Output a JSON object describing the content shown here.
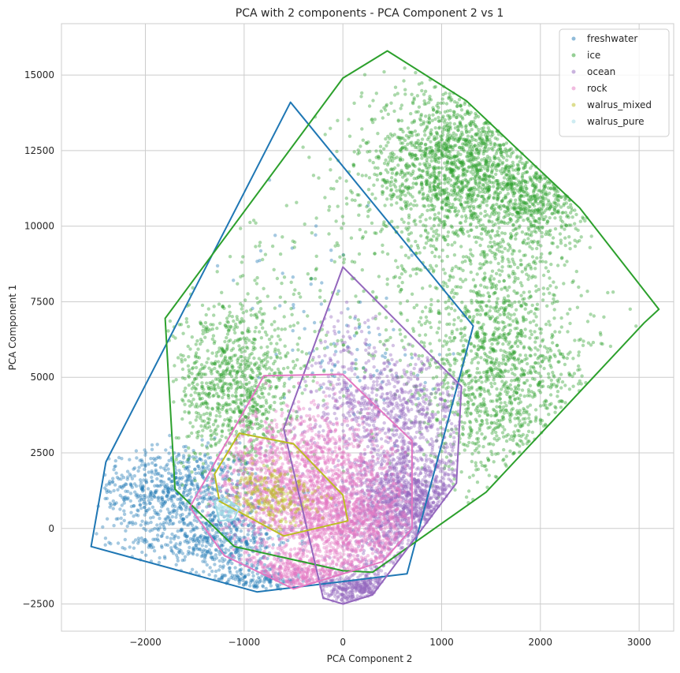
{
  "chart_data": {
    "type": "scatter",
    "title": "PCA with 2 components - PCA Component 2 vs 1",
    "xlabel": "PCA Component 2",
    "ylabel": "PCA Component 1",
    "xlim": [
      -2850,
      3350
    ],
    "ylim": [
      -3400,
      16700
    ],
    "xticks": [
      -2000,
      -1000,
      0,
      1000,
      2000,
      3000
    ],
    "xtick_labels": [
      "−2000",
      "−1000",
      "0",
      "1000",
      "2000",
      "3000"
    ],
    "yticks": [
      -2500,
      0,
      2500,
      5000,
      7500,
      10000,
      12500,
      15000
    ],
    "ytick_labels": [
      "−2500",
      "0",
      "2500",
      "5000",
      "7500",
      "10000",
      "12500",
      "15000"
    ],
    "grid": true,
    "legend_position": "top-right",
    "series": [
      {
        "name": "freshwater",
        "color": "#1f77b4",
        "hull": [
          [
            -2550,
            -600
          ],
          [
            -2400,
            2200
          ],
          [
            -530,
            14100
          ],
          [
            1320,
            6700
          ],
          [
            650,
            -1500
          ],
          [
            -870,
            -2100
          ]
        ],
        "clusters": [
          {
            "center": [
              -1700,
              1300
            ],
            "spread": [
              450,
              700
            ],
            "count": 700
          },
          {
            "center": [
              -1300,
              -400
            ],
            "spread": [
              400,
              500
            ],
            "count": 500
          },
          {
            "center": [
              -900,
              -1700
            ],
            "spread": [
              250,
              250
            ],
            "count": 150
          },
          {
            "center": [
              -300,
              8500
            ],
            "spread": [
              400,
              2000
            ],
            "count": 40
          },
          {
            "center": [
              200,
              5500
            ],
            "spread": [
              400,
              800
            ],
            "count": 60
          }
        ]
      },
      {
        "name": "ice",
        "color": "#2ca02c",
        "hull": [
          [
            -1800,
            6950
          ],
          [
            -1700,
            1300
          ],
          [
            -1100,
            -600
          ],
          [
            0,
            -1400
          ],
          [
            300,
            -1450
          ],
          [
            1450,
            1200
          ],
          [
            3050,
            6800
          ],
          [
            3200,
            7250
          ],
          [
            2400,
            10600
          ],
          [
            1250,
            14150
          ],
          [
            450,
            15800
          ],
          [
            0,
            14900
          ],
          [
            -1800,
            6950
          ]
        ],
        "clusters": [
          {
            "center": [
              1200,
              12000
            ],
            "spread": [
              500,
              1300
            ],
            "count": 1700
          },
          {
            "center": [
              2000,
              10700
            ],
            "spread": [
              300,
              700
            ],
            "count": 400
          },
          {
            "center": [
              -1100,
              4700
            ],
            "spread": [
              300,
              1400
            ],
            "count": 900
          },
          {
            "center": [
              1550,
              6500
            ],
            "spread": [
              400,
              1800
            ],
            "count": 900
          },
          {
            "center": [
              1800,
              3500
            ],
            "spread": [
              500,
              1500
            ],
            "count": 500
          },
          {
            "center": [
              0,
              7000
            ],
            "spread": [
              900,
              2200
            ],
            "count": 300
          }
        ]
      },
      {
        "name": "ocean",
        "color": "#9467bd",
        "hull": [
          [
            -600,
            3300
          ],
          [
            0,
            8650
          ],
          [
            1200,
            4700
          ],
          [
            1150,
            1500
          ],
          [
            300,
            -2200
          ],
          [
            0,
            -2500
          ],
          [
            -200,
            -2300
          ]
        ],
        "clusters": [
          {
            "center": [
              700,
              800
            ],
            "spread": [
              350,
              1000
            ],
            "count": 1400
          },
          {
            "center": [
              500,
              4000
            ],
            "spread": [
              450,
              900
            ],
            "count": 700
          },
          {
            "center": [
              200,
              -2000
            ],
            "spread": [
              250,
              350
            ],
            "count": 350
          },
          {
            "center": [
              0,
              6000
            ],
            "spread": [
              300,
              900
            ],
            "count": 60
          }
        ]
      },
      {
        "name": "rock",
        "color": "#e377c2",
        "hull": [
          [
            -1550,
            700
          ],
          [
            -800,
            5050
          ],
          [
            0,
            5100
          ],
          [
            700,
            2900
          ],
          [
            700,
            0
          ],
          [
            400,
            -1100
          ],
          [
            -500,
            -2000
          ],
          [
            -1200,
            -900
          ],
          [
            -1550,
            700
          ]
        ],
        "clusters": [
          {
            "center": [
              -400,
              1500
            ],
            "spread": [
              500,
              1200
            ],
            "count": 1800
          },
          {
            "center": [
              100,
              0
            ],
            "spread": [
              400,
              800
            ],
            "count": 800
          },
          {
            "center": [
              -400,
              -1500
            ],
            "spread": [
              350,
              350
            ],
            "count": 400
          }
        ]
      },
      {
        "name": "walrus_mixed",
        "color": "#bcbd22",
        "hull": [
          [
            -1300,
            1800
          ],
          [
            -1050,
            3150
          ],
          [
            -500,
            2800
          ],
          [
            0,
            1100
          ],
          [
            50,
            250
          ],
          [
            -600,
            -250
          ],
          [
            -1250,
            900
          ],
          [
            -1300,
            1800
          ]
        ],
        "clusters": [
          {
            "center": [
              -700,
              1100
            ],
            "spread": [
              250,
              500
            ],
            "count": 250
          }
        ]
      },
      {
        "name": "walrus_pure",
        "color": "#9edae5",
        "hull": [
          [
            -1300,
            900
          ],
          [
            -1200,
            1000
          ],
          [
            -1050,
            700
          ],
          [
            -1100,
            300
          ],
          [
            -1250,
            250
          ],
          [
            -1300,
            900
          ]
        ],
        "clusters": [
          {
            "center": [
              -1150,
              650
            ],
            "spread": [
              70,
              150
            ],
            "count": 60
          }
        ]
      }
    ]
  }
}
